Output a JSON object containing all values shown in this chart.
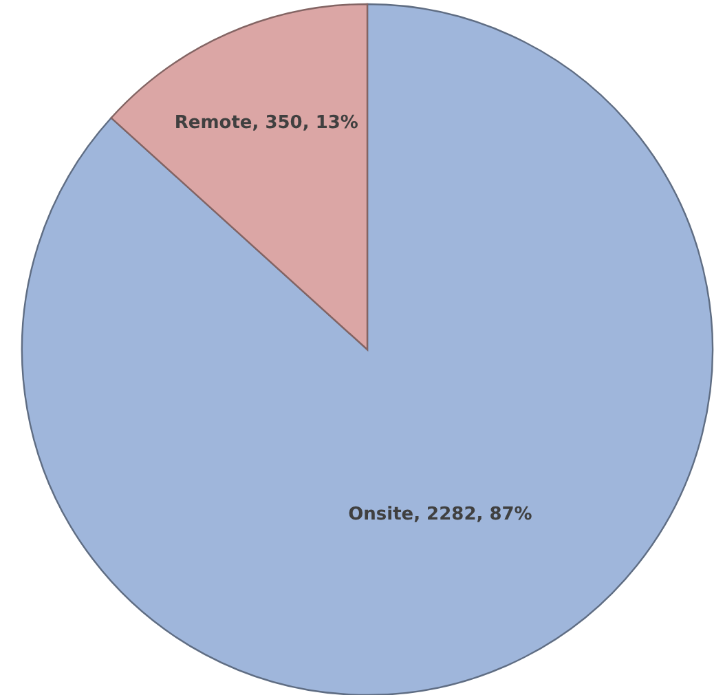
{
  "chart_data": {
    "type": "pie",
    "categories": [
      "Onsite",
      "Remote"
    ],
    "values": [
      2282,
      350
    ],
    "colors": [
      "#9fb6db",
      "#dba6a5"
    ],
    "value_labels": [
      ", 2282, 87%",
      ", 350, 13%"
    ]
  }
}
